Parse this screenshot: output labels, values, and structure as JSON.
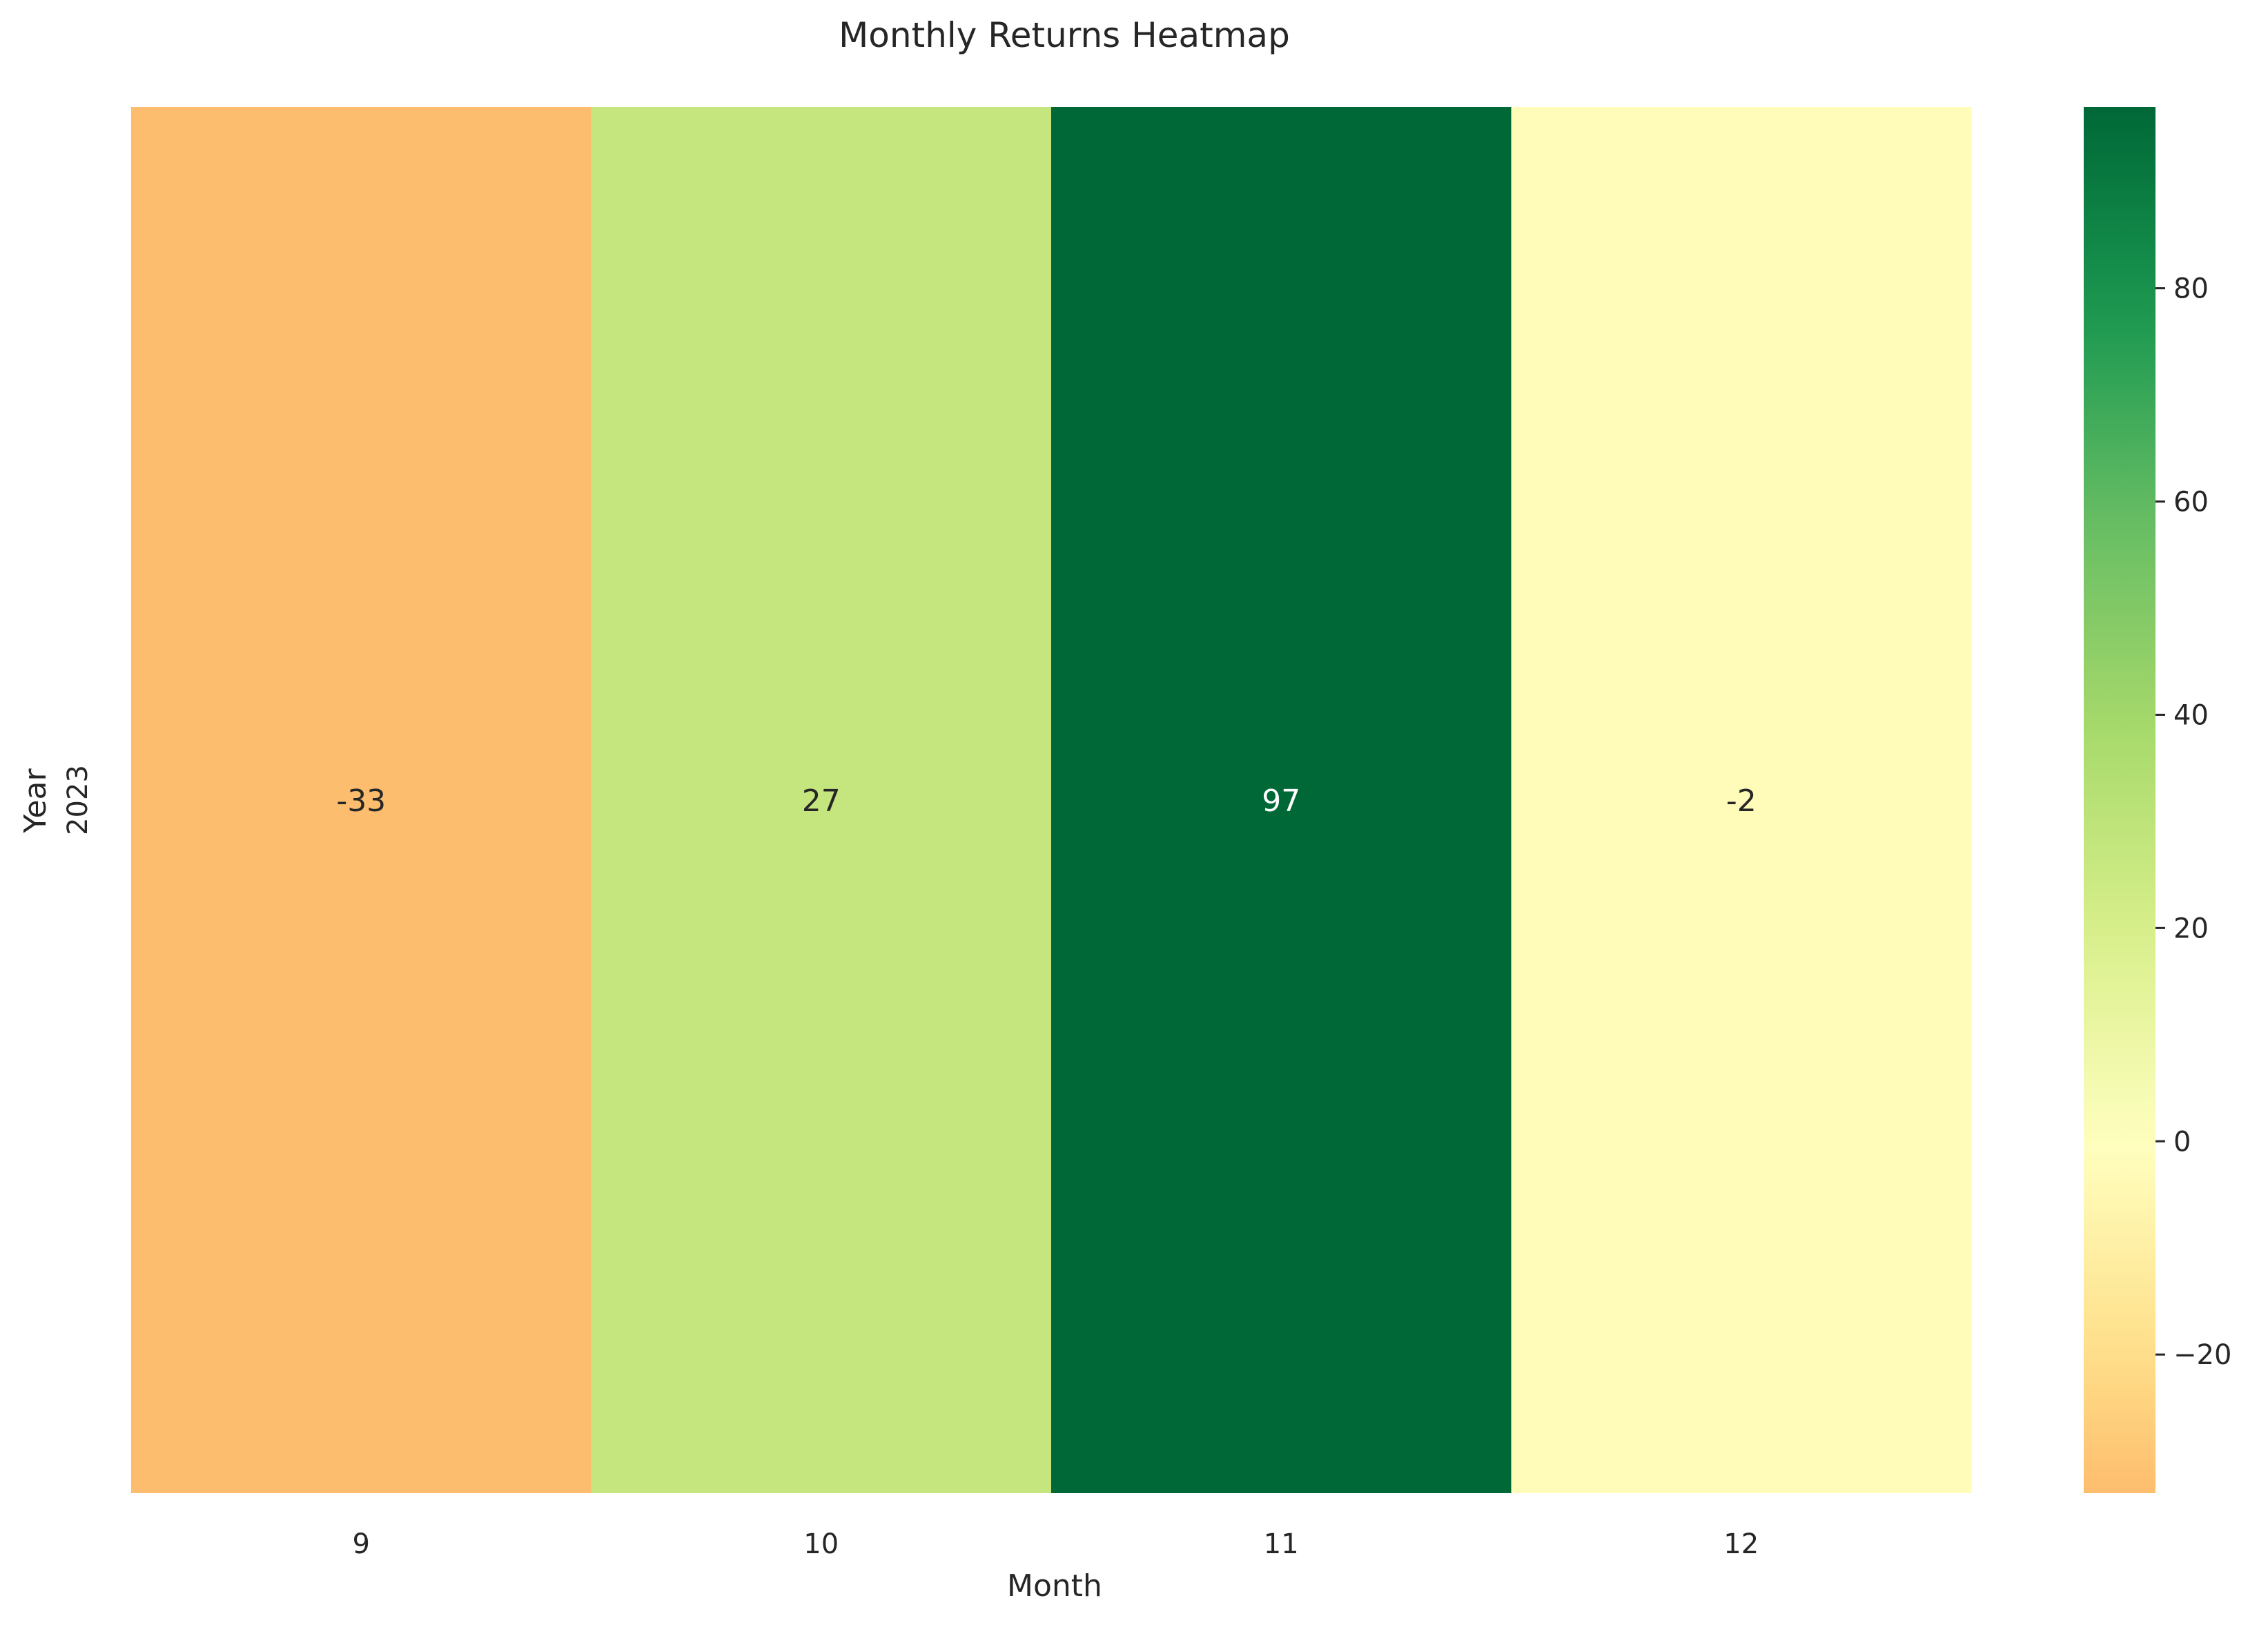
{
  "chart_data": {
    "type": "heatmap",
    "title": "Monthly Returns Heatmap",
    "xlabel": "Month",
    "ylabel": "Year",
    "x_categories": [
      "9",
      "10",
      "11",
      "12"
    ],
    "y_categories": [
      "2023"
    ],
    "values": [
      [
        -33,
        27,
        97,
        -2
      ]
    ],
    "cell_labels": [
      [
        "-33",
        "27",
        "97",
        "-2"
      ]
    ],
    "colormap": "RdYlGn",
    "center": 0,
    "vmin": -33,
    "vmax": 97,
    "colorbar": {
      "ticks": [
        -20,
        0,
        20,
        40,
        60,
        80
      ],
      "tick_labels": [
        "−20",
        "0",
        "20",
        "40",
        "60",
        "80"
      ]
    },
    "grid": false
  }
}
